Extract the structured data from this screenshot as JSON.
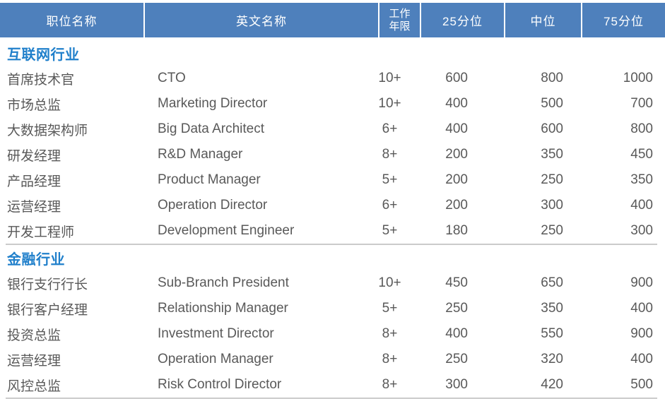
{
  "table": {
    "columns": [
      {
        "label": "职位名称"
      },
      {
        "label": "英文名称"
      },
      {
        "label": "工作年限",
        "line1": "工作",
        "line2": "年限"
      },
      {
        "label": "25分位"
      },
      {
        "label": "中位"
      },
      {
        "label": "75分位"
      }
    ],
    "sections": [
      {
        "title": "互联网行业",
        "rows": [
          {
            "cn": "首席技术官",
            "en": "CTO",
            "years": "10+",
            "p25": "600",
            "p50": "800",
            "p75": "1000"
          },
          {
            "cn": "市场总监",
            "en": "Marketing Director",
            "years": "10+",
            "p25": "400",
            "p50": "500",
            "p75": "700"
          },
          {
            "cn": "大数据架构师",
            "en": "Big Data Architect",
            "years": "6+",
            "p25": "400",
            "p50": "600",
            "p75": "800"
          },
          {
            "cn": "研发经理",
            "en": "R&D Manager",
            "years": "8+",
            "p25": "200",
            "p50": "350",
            "p75": "450"
          },
          {
            "cn": "产品经理",
            "en": "Product Manager",
            "years": "5+",
            "p25": "200",
            "p50": "250",
            "p75": "350"
          },
          {
            "cn": "运营经理",
            "en": "Operation Director",
            "years": "6+",
            "p25": "200",
            "p50": "300",
            "p75": "400"
          },
          {
            "cn": "开发工程师",
            "en": "Development Engineer",
            "years": "5+",
            "p25": "180",
            "p50": "250",
            "p75": "300"
          }
        ]
      },
      {
        "title": "金融行业",
        "rows": [
          {
            "cn": "银行支行行长",
            "en": "Sub-Branch President",
            "years": "10+",
            "p25": "450",
            "p50": "650",
            "p75": "900"
          },
          {
            "cn": "银行客户经理",
            "en": "Relationship Manager",
            "years": "5+",
            "p25": "250",
            "p50": "350",
            "p75": "400"
          },
          {
            "cn": "投资总监",
            "en": "Investment Director",
            "years": "8+",
            "p25": "400",
            "p50": "550",
            "p75": "900"
          },
          {
            "cn": "运营经理",
            "en": "Operation Manager",
            "years": "8+",
            "p25": "250",
            "p50": "320",
            "p75": "400"
          },
          {
            "cn": "风控总监",
            "en": "Risk Control Director",
            "years": "8+",
            "p25": "300",
            "p50": "420",
            "p75": "500"
          }
        ]
      }
    ]
  },
  "colors": {
    "header_bg": "#4e80bc",
    "header_text": "#ffffff",
    "section_title": "#2180cb",
    "body_text": "#595959",
    "divider_line": "#cbcbcb"
  }
}
